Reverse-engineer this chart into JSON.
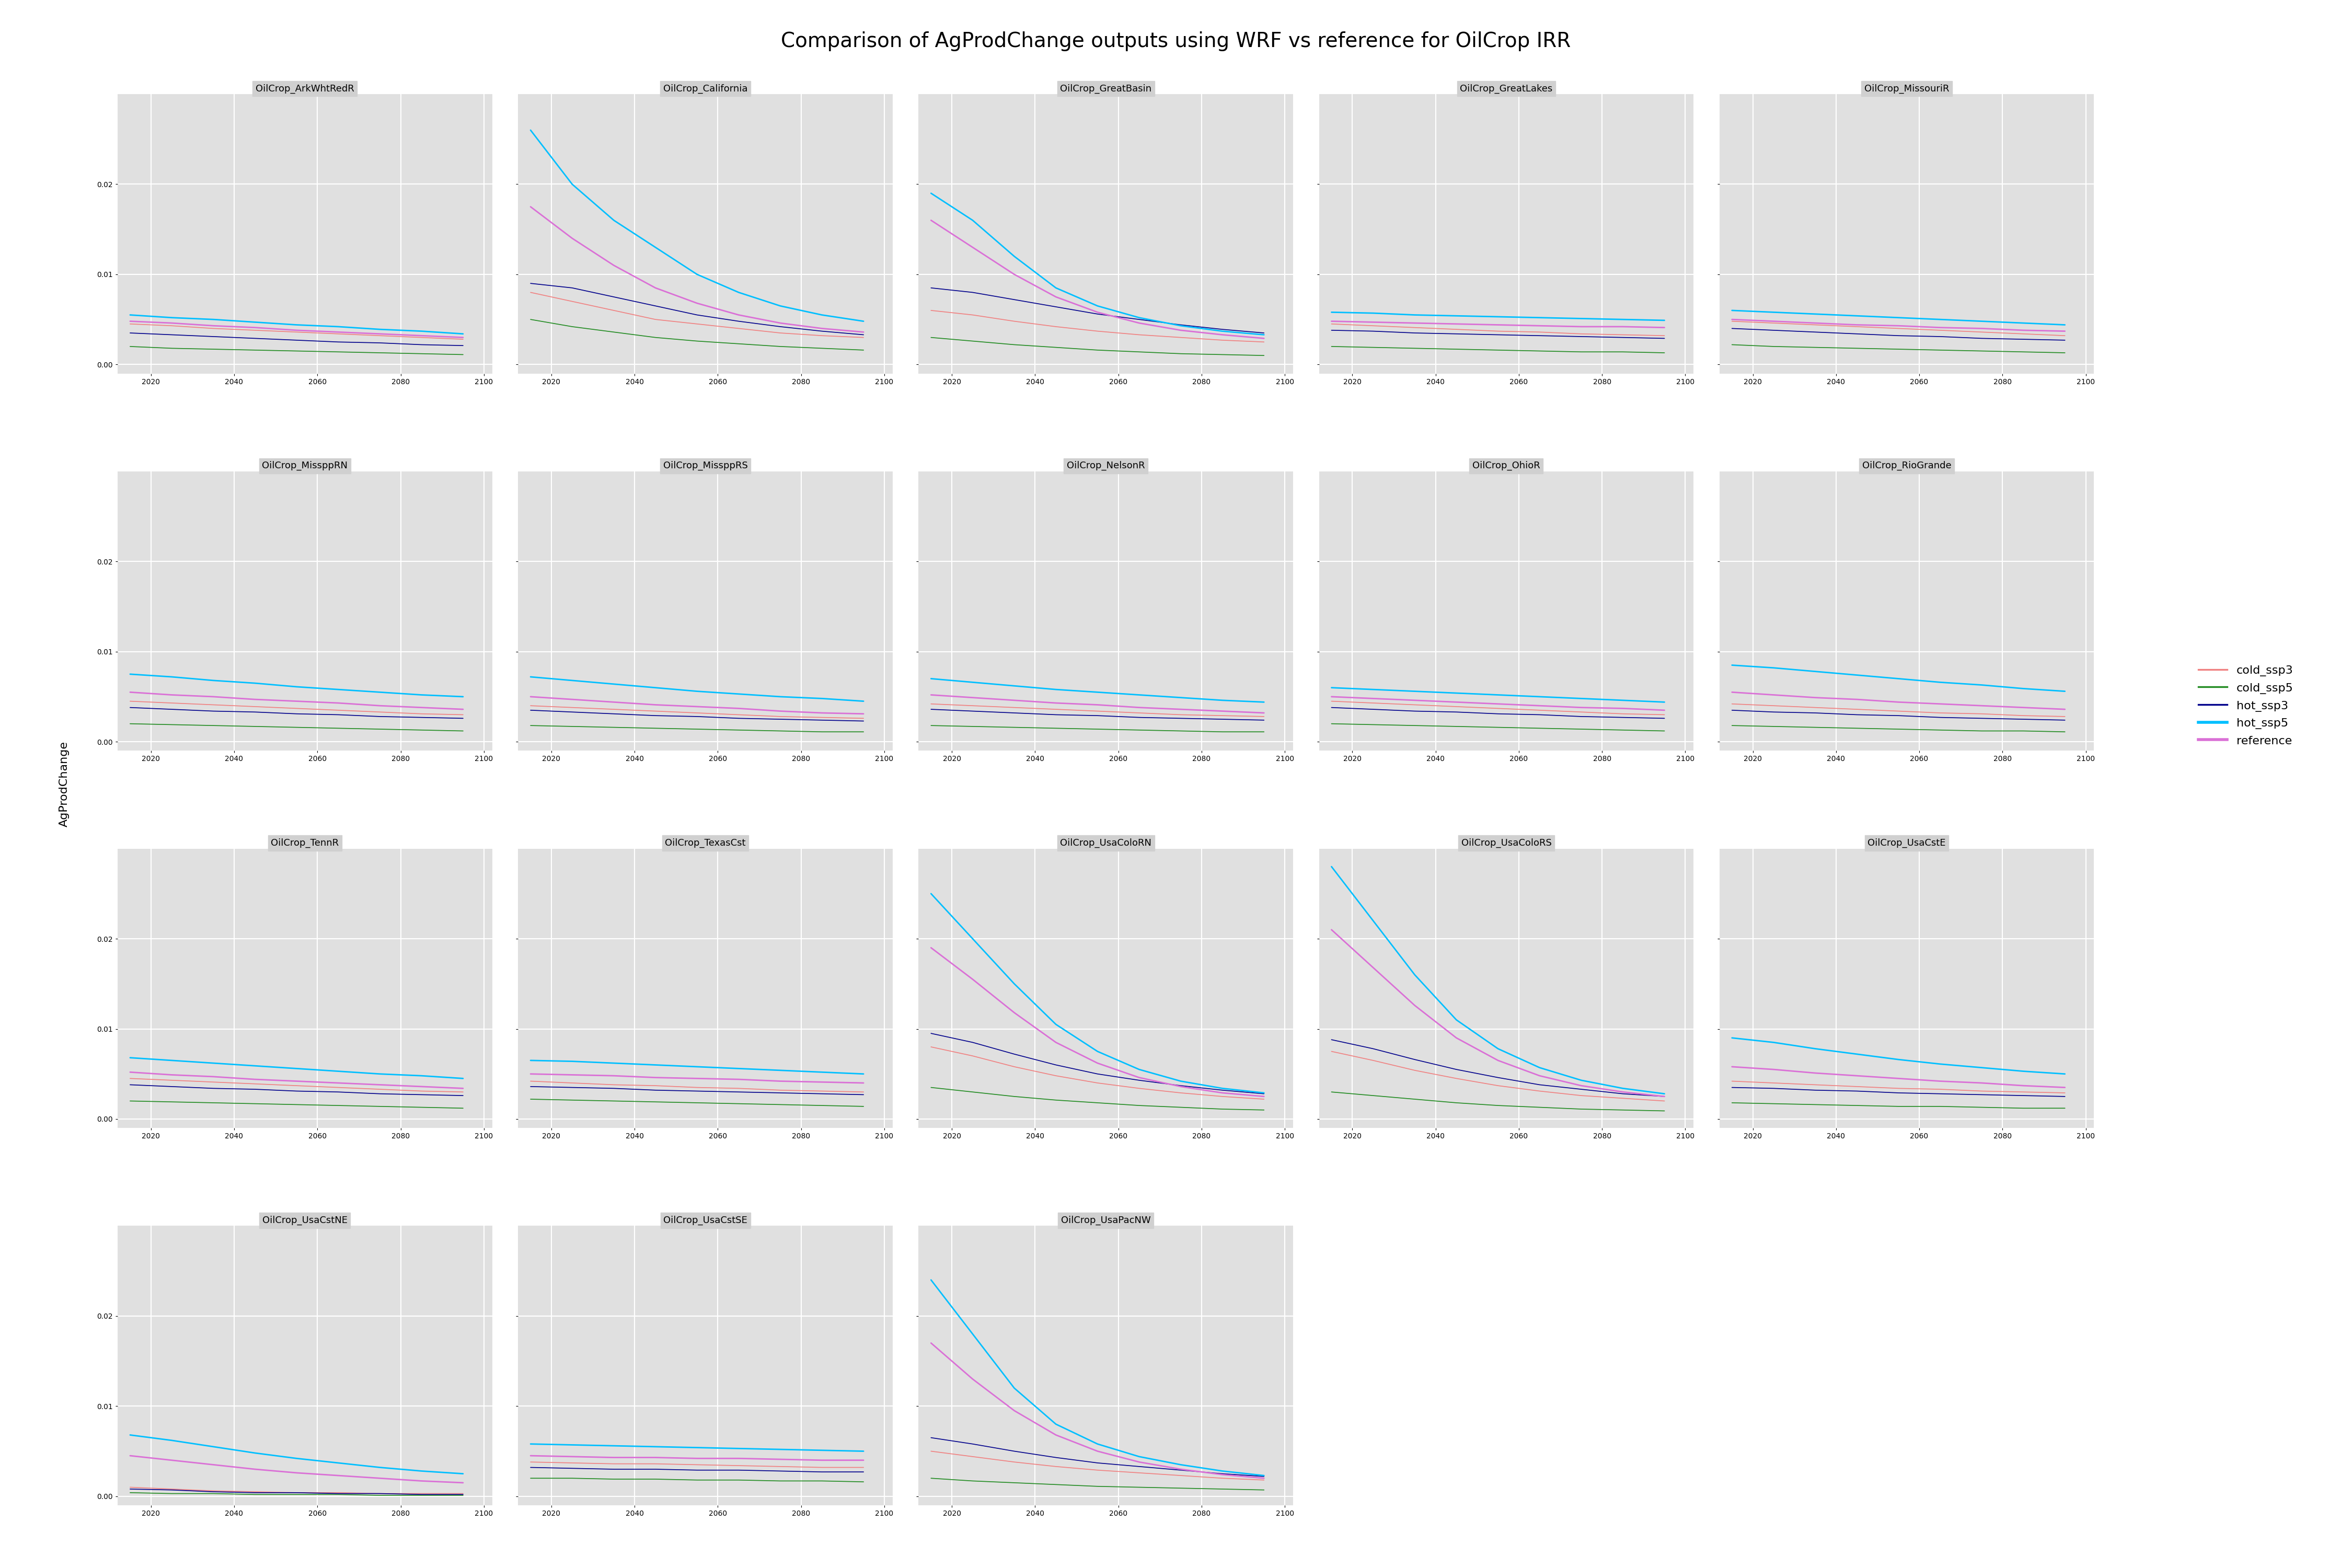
{
  "title": "Comparison of AgProdChange outputs using WRF vs reference for OilCrop IRR",
  "ylabel": "AgProdChange",
  "background_color": "#e8e8e8",
  "plot_bg_color": "#e0e0e0",
  "grid_color": "#ffffff",
  "line_colors": {
    "cold_ssp3": "#f08080",
    "cold_ssp5": "#228B22",
    "hot_ssp3": "#00008B",
    "hot_ssp5": "#00BFFF",
    "reference": "#DA70D6"
  },
  "line_widths": {
    "cold_ssp3": 1.2,
    "cold_ssp5": 1.2,
    "hot_ssp3": 1.2,
    "hot_ssp5": 2.0,
    "reference": 2.0
  },
  "x_values": [
    2015,
    2025,
    2035,
    2045,
    2055,
    2065,
    2075,
    2085,
    2095
  ],
  "subplots": [
    {
      "name": "OilCrop_ArkWhtRedR",
      "cold_ssp3": [
        0.0045,
        0.0043,
        0.004,
        0.0038,
        0.0036,
        0.0034,
        0.0032,
        0.003,
        0.0028
      ],
      "cold_ssp5": [
        0.002,
        0.0018,
        0.0017,
        0.0016,
        0.0015,
        0.0014,
        0.0013,
        0.0012,
        0.0011
      ],
      "hot_ssp3": [
        0.0035,
        0.0033,
        0.0031,
        0.0029,
        0.0027,
        0.0025,
        0.0024,
        0.0022,
        0.0021
      ],
      "hot_ssp5": [
        0.0055,
        0.0052,
        0.005,
        0.0047,
        0.0044,
        0.0042,
        0.0039,
        0.0037,
        0.0034
      ],
      "reference": [
        0.0048,
        0.0046,
        0.0043,
        0.0041,
        0.0038,
        0.0036,
        0.0034,
        0.0032,
        0.003
      ]
    },
    {
      "name": "OilCrop_California",
      "cold_ssp3": [
        0.008,
        0.007,
        0.006,
        0.005,
        0.0045,
        0.004,
        0.0035,
        0.0032,
        0.003
      ],
      "cold_ssp5": [
        0.005,
        0.0042,
        0.0036,
        0.003,
        0.0026,
        0.0023,
        0.002,
        0.0018,
        0.0016
      ],
      "hot_ssp3": [
        0.009,
        0.0085,
        0.0075,
        0.0065,
        0.0055,
        0.0048,
        0.0042,
        0.0037,
        0.0033
      ],
      "hot_ssp5": [
        0.026,
        0.02,
        0.016,
        0.013,
        0.01,
        0.008,
        0.0065,
        0.0055,
        0.0048
      ],
      "reference": [
        0.0175,
        0.014,
        0.011,
        0.0085,
        0.0068,
        0.0055,
        0.0046,
        0.004,
        0.0036
      ]
    },
    {
      "name": "OilCrop_GreatBasin",
      "cold_ssp3": [
        0.006,
        0.0055,
        0.0048,
        0.0042,
        0.0037,
        0.0033,
        0.003,
        0.0027,
        0.0025
      ],
      "cold_ssp5": [
        0.003,
        0.0026,
        0.0022,
        0.0019,
        0.0016,
        0.0014,
        0.0012,
        0.0011,
        0.001
      ],
      "hot_ssp3": [
        0.0085,
        0.008,
        0.0072,
        0.0064,
        0.0056,
        0.005,
        0.0044,
        0.0039,
        0.0035
      ],
      "hot_ssp5": [
        0.019,
        0.016,
        0.012,
        0.0085,
        0.0065,
        0.0052,
        0.0043,
        0.0037,
        0.0033
      ],
      "reference": [
        0.016,
        0.013,
        0.01,
        0.0075,
        0.0058,
        0.0046,
        0.0038,
        0.0033,
        0.0029
      ]
    },
    {
      "name": "OilCrop_GreatLakes",
      "cold_ssp3": [
        0.0045,
        0.0043,
        0.0041,
        0.0039,
        0.0037,
        0.0036,
        0.0034,
        0.0033,
        0.0032
      ],
      "cold_ssp5": [
        0.002,
        0.0019,
        0.0018,
        0.0017,
        0.0016,
        0.0015,
        0.0014,
        0.0014,
        0.0013
      ],
      "hot_ssp3": [
        0.0038,
        0.0037,
        0.0035,
        0.0034,
        0.0033,
        0.0032,
        0.0031,
        0.003,
        0.0029
      ],
      "hot_ssp5": [
        0.0058,
        0.0057,
        0.0055,
        0.0054,
        0.0053,
        0.0052,
        0.0051,
        0.005,
        0.0049
      ],
      "reference": [
        0.0048,
        0.0047,
        0.0046,
        0.0045,
        0.0044,
        0.0043,
        0.0042,
        0.0042,
        0.0041
      ]
    },
    {
      "name": "OilCrop_MissouriR",
      "cold_ssp3": [
        0.0048,
        0.0046,
        0.0044,
        0.0042,
        0.004,
        0.0038,
        0.0036,
        0.0034,
        0.0032
      ],
      "cold_ssp5": [
        0.0022,
        0.002,
        0.0019,
        0.0018,
        0.0017,
        0.0016,
        0.0015,
        0.0014,
        0.0013
      ],
      "hot_ssp3": [
        0.004,
        0.0038,
        0.0036,
        0.0034,
        0.0032,
        0.0031,
        0.0029,
        0.0028,
        0.0027
      ],
      "hot_ssp5": [
        0.006,
        0.0058,
        0.0056,
        0.0054,
        0.0052,
        0.005,
        0.0048,
        0.0046,
        0.0044
      ],
      "reference": [
        0.005,
        0.0048,
        0.0046,
        0.0044,
        0.0043,
        0.0041,
        0.004,
        0.0038,
        0.0037
      ]
    },
    {
      "name": "OilCrop_MissppRN",
      "cold_ssp3": [
        0.0045,
        0.0043,
        0.0041,
        0.0039,
        0.0037,
        0.0035,
        0.0033,
        0.0031,
        0.003
      ],
      "cold_ssp5": [
        0.002,
        0.0019,
        0.0018,
        0.0017,
        0.0016,
        0.0015,
        0.0014,
        0.0013,
        0.0012
      ],
      "hot_ssp3": [
        0.0038,
        0.0036,
        0.0034,
        0.0033,
        0.0031,
        0.003,
        0.0028,
        0.0027,
        0.0026
      ],
      "hot_ssp5": [
        0.0075,
        0.0072,
        0.0068,
        0.0065,
        0.0061,
        0.0058,
        0.0055,
        0.0052,
        0.005
      ],
      "reference": [
        0.0055,
        0.0052,
        0.005,
        0.0047,
        0.0045,
        0.0043,
        0.004,
        0.0038,
        0.0036
      ]
    },
    {
      "name": "OilCrop_MissppRS",
      "cold_ssp3": [
        0.004,
        0.0038,
        0.0036,
        0.0034,
        0.0032,
        0.003,
        0.0028,
        0.0027,
        0.0026
      ],
      "cold_ssp5": [
        0.0018,
        0.0017,
        0.0016,
        0.0015,
        0.0014,
        0.0013,
        0.0012,
        0.0011,
        0.0011
      ],
      "hot_ssp3": [
        0.0035,
        0.0033,
        0.0031,
        0.0029,
        0.0028,
        0.0026,
        0.0025,
        0.0024,
        0.0023
      ],
      "hot_ssp5": [
        0.0072,
        0.0068,
        0.0064,
        0.006,
        0.0056,
        0.0053,
        0.005,
        0.0048,
        0.0045
      ],
      "reference": [
        0.005,
        0.0047,
        0.0044,
        0.0041,
        0.0039,
        0.0037,
        0.0034,
        0.0032,
        0.0031
      ]
    },
    {
      "name": "OilCrop_NelsonR",
      "cold_ssp3": [
        0.0042,
        0.004,
        0.0038,
        0.0036,
        0.0034,
        0.0032,
        0.003,
        0.0029,
        0.0028
      ],
      "cold_ssp5": [
        0.0018,
        0.0017,
        0.0016,
        0.0015,
        0.0014,
        0.0013,
        0.0012,
        0.0011,
        0.0011
      ],
      "hot_ssp3": [
        0.0036,
        0.0034,
        0.0032,
        0.003,
        0.0029,
        0.0027,
        0.0026,
        0.0025,
        0.0024
      ],
      "hot_ssp5": [
        0.007,
        0.0066,
        0.0062,
        0.0058,
        0.0055,
        0.0052,
        0.0049,
        0.0046,
        0.0044
      ],
      "reference": [
        0.0052,
        0.0049,
        0.0046,
        0.0043,
        0.0041,
        0.0038,
        0.0036,
        0.0034,
        0.0032
      ]
    },
    {
      "name": "OilCrop_OhioR",
      "cold_ssp3": [
        0.0045,
        0.0043,
        0.0041,
        0.0039,
        0.0037,
        0.0035,
        0.0033,
        0.0031,
        0.003
      ],
      "cold_ssp5": [
        0.002,
        0.0019,
        0.0018,
        0.0017,
        0.0016,
        0.0015,
        0.0014,
        0.0013,
        0.0012
      ],
      "hot_ssp3": [
        0.0038,
        0.0036,
        0.0034,
        0.0033,
        0.0031,
        0.003,
        0.0028,
        0.0027,
        0.0026
      ],
      "hot_ssp5": [
        0.006,
        0.0058,
        0.0056,
        0.0054,
        0.0052,
        0.005,
        0.0048,
        0.0046,
        0.0044
      ],
      "reference": [
        0.005,
        0.0048,
        0.0046,
        0.0044,
        0.0042,
        0.004,
        0.0038,
        0.0037,
        0.0035
      ]
    },
    {
      "name": "OilCrop_RioGrande",
      "cold_ssp3": [
        0.0042,
        0.004,
        0.0038,
        0.0036,
        0.0034,
        0.0032,
        0.0031,
        0.0029,
        0.0028
      ],
      "cold_ssp5": [
        0.0018,
        0.0017,
        0.0016,
        0.0015,
        0.0014,
        0.0013,
        0.0012,
        0.0012,
        0.0011
      ],
      "hot_ssp3": [
        0.0035,
        0.0033,
        0.0032,
        0.003,
        0.0029,
        0.0027,
        0.0026,
        0.0025,
        0.0024
      ],
      "hot_ssp5": [
        0.0085,
        0.0082,
        0.0078,
        0.0074,
        0.007,
        0.0066,
        0.0063,
        0.0059,
        0.0056
      ],
      "reference": [
        0.0055,
        0.0052,
        0.0049,
        0.0047,
        0.0044,
        0.0042,
        0.004,
        0.0038,
        0.0036
      ]
    },
    {
      "name": "OilCrop_TennR",
      "cold_ssp3": [
        0.0045,
        0.0043,
        0.0041,
        0.0039,
        0.0037,
        0.0035,
        0.0033,
        0.0031,
        0.003
      ],
      "cold_ssp5": [
        0.002,
        0.0019,
        0.0018,
        0.0017,
        0.0016,
        0.0015,
        0.0014,
        0.0013,
        0.0012
      ],
      "hot_ssp3": [
        0.0038,
        0.0036,
        0.0034,
        0.0033,
        0.0031,
        0.003,
        0.0028,
        0.0027,
        0.0026
      ],
      "hot_ssp5": [
        0.0068,
        0.0065,
        0.0062,
        0.0059,
        0.0056,
        0.0053,
        0.005,
        0.0048,
        0.0045
      ],
      "reference": [
        0.0052,
        0.0049,
        0.0047,
        0.0044,
        0.0042,
        0.004,
        0.0038,
        0.0036,
        0.0034
      ]
    },
    {
      "name": "OilCrop_TexasCst",
      "cold_ssp3": [
        0.0042,
        0.004,
        0.0038,
        0.0037,
        0.0035,
        0.0034,
        0.0032,
        0.0031,
        0.003
      ],
      "cold_ssp5": [
        0.0022,
        0.0021,
        0.002,
        0.0019,
        0.0018,
        0.0017,
        0.0016,
        0.0015,
        0.0014
      ],
      "hot_ssp3": [
        0.0036,
        0.0035,
        0.0034,
        0.0032,
        0.0031,
        0.003,
        0.0029,
        0.0028,
        0.0027
      ],
      "hot_ssp5": [
        0.0065,
        0.0064,
        0.0062,
        0.006,
        0.0058,
        0.0056,
        0.0054,
        0.0052,
        0.005
      ],
      "reference": [
        0.005,
        0.0049,
        0.0048,
        0.0046,
        0.0045,
        0.0044,
        0.0042,
        0.0041,
        0.004
      ]
    },
    {
      "name": "OilCrop_UsaColoRN",
      "cold_ssp3": [
        0.008,
        0.007,
        0.0058,
        0.0048,
        0.004,
        0.0034,
        0.0029,
        0.0025,
        0.0022
      ],
      "cold_ssp5": [
        0.0035,
        0.003,
        0.0025,
        0.0021,
        0.0018,
        0.0015,
        0.0013,
        0.0011,
        0.001
      ],
      "hot_ssp3": [
        0.0095,
        0.0085,
        0.0072,
        0.006,
        0.005,
        0.0043,
        0.0037,
        0.0032,
        0.0028
      ],
      "hot_ssp5": [
        0.025,
        0.02,
        0.015,
        0.0105,
        0.0075,
        0.0055,
        0.0042,
        0.0034,
        0.0029
      ],
      "reference": [
        0.019,
        0.0155,
        0.0118,
        0.0085,
        0.0062,
        0.0046,
        0.0036,
        0.0029,
        0.0025
      ]
    },
    {
      "name": "OilCrop_UsaColoRS",
      "cold_ssp3": [
        0.0075,
        0.0065,
        0.0054,
        0.0045,
        0.0037,
        0.0031,
        0.0026,
        0.0023,
        0.002
      ],
      "cold_ssp5": [
        0.003,
        0.0026,
        0.0022,
        0.0018,
        0.0015,
        0.0013,
        0.0011,
        0.001,
        0.0009
      ],
      "hot_ssp3": [
        0.0088,
        0.0078,
        0.0066,
        0.0055,
        0.0046,
        0.0038,
        0.0033,
        0.0028,
        0.0025
      ],
      "hot_ssp5": [
        0.028,
        0.022,
        0.016,
        0.011,
        0.0078,
        0.0057,
        0.0043,
        0.0034,
        0.0028
      ],
      "reference": [
        0.021,
        0.0168,
        0.0126,
        0.009,
        0.0065,
        0.0048,
        0.0037,
        0.003,
        0.0025
      ]
    },
    {
      "name": "OilCrop_UsaCstE",
      "cold_ssp3": [
        0.0042,
        0.004,
        0.0038,
        0.0036,
        0.0034,
        0.0033,
        0.0031,
        0.003,
        0.0029
      ],
      "cold_ssp5": [
        0.0018,
        0.0017,
        0.0016,
        0.0015,
        0.0014,
        0.0014,
        0.0013,
        0.0012,
        0.0012
      ],
      "hot_ssp3": [
        0.0035,
        0.0034,
        0.0032,
        0.0031,
        0.0029,
        0.0028,
        0.0027,
        0.0026,
        0.0025
      ],
      "hot_ssp5": [
        0.009,
        0.0085,
        0.0078,
        0.0072,
        0.0066,
        0.0061,
        0.0057,
        0.0053,
        0.005
      ],
      "reference": [
        0.0058,
        0.0055,
        0.0051,
        0.0048,
        0.0045,
        0.0042,
        0.004,
        0.0037,
        0.0035
      ]
    },
    {
      "name": "OilCrop_UsaCstNE",
      "cold_ssp3": [
        0.001,
        0.0008,
        0.0006,
        0.0005,
        0.0004,
        0.0004,
        0.0003,
        0.0003,
        0.0003
      ],
      "cold_ssp5": [
        0.0004,
        0.0003,
        0.0003,
        0.0002,
        0.0002,
        0.0002,
        0.0001,
        0.0001,
        0.0001
      ],
      "hot_ssp3": [
        0.0008,
        0.0007,
        0.0005,
        0.0004,
        0.0004,
        0.0003,
        0.0003,
        0.0002,
        0.0002
      ],
      "hot_ssp5": [
        0.0068,
        0.0062,
        0.0055,
        0.0048,
        0.0042,
        0.0037,
        0.0032,
        0.0028,
        0.0025
      ],
      "reference": [
        0.0045,
        0.004,
        0.0035,
        0.003,
        0.0026,
        0.0023,
        0.002,
        0.0017,
        0.0015
      ]
    },
    {
      "name": "OilCrop_UsaCstSE",
      "cold_ssp3": [
        0.0038,
        0.0037,
        0.0036,
        0.0036,
        0.0035,
        0.0034,
        0.0033,
        0.0032,
        0.0032
      ],
      "cold_ssp5": [
        0.002,
        0.002,
        0.0019,
        0.0019,
        0.0018,
        0.0018,
        0.0017,
        0.0017,
        0.0016
      ],
      "hot_ssp3": [
        0.0032,
        0.0031,
        0.003,
        0.003,
        0.0029,
        0.0029,
        0.0028,
        0.0027,
        0.0027
      ],
      "hot_ssp5": [
        0.0058,
        0.0057,
        0.0056,
        0.0055,
        0.0054,
        0.0053,
        0.0052,
        0.0051,
        0.005
      ],
      "reference": [
        0.0045,
        0.0044,
        0.0043,
        0.0043,
        0.0042,
        0.0042,
        0.0041,
        0.004,
        0.004
      ]
    },
    {
      "name": "OilCrop_UsaPacNW",
      "cold_ssp3": [
        0.005,
        0.0044,
        0.0038,
        0.0033,
        0.0029,
        0.0026,
        0.0023,
        0.002,
        0.0018
      ],
      "cold_ssp5": [
        0.002,
        0.0017,
        0.0015,
        0.0013,
        0.0011,
        0.001,
        0.0009,
        0.0008,
        0.0007
      ],
      "hot_ssp3": [
        0.0065,
        0.0058,
        0.005,
        0.0043,
        0.0037,
        0.0033,
        0.0029,
        0.0025,
        0.0022
      ],
      "hot_ssp5": [
        0.024,
        0.018,
        0.012,
        0.008,
        0.0058,
        0.0044,
        0.0035,
        0.0028,
        0.0023
      ],
      "reference": [
        0.017,
        0.013,
        0.0095,
        0.0068,
        0.005,
        0.0038,
        0.003,
        0.0024,
        0.002
      ]
    }
  ],
  "ncols": 5,
  "x_ticks": [
    2020,
    2040,
    2060,
    2080,
    2100
  ],
  "y_ticks_row1": [
    0.0,
    0.01,
    0.02
  ],
  "y_ticks_row2": [
    0.0,
    0.01,
    0.02
  ],
  "y_ticks_row3": [
    0.0,
    0.01,
    0.02
  ],
  "y_ticks_row4": [
    0.0,
    0.01,
    0.02
  ]
}
